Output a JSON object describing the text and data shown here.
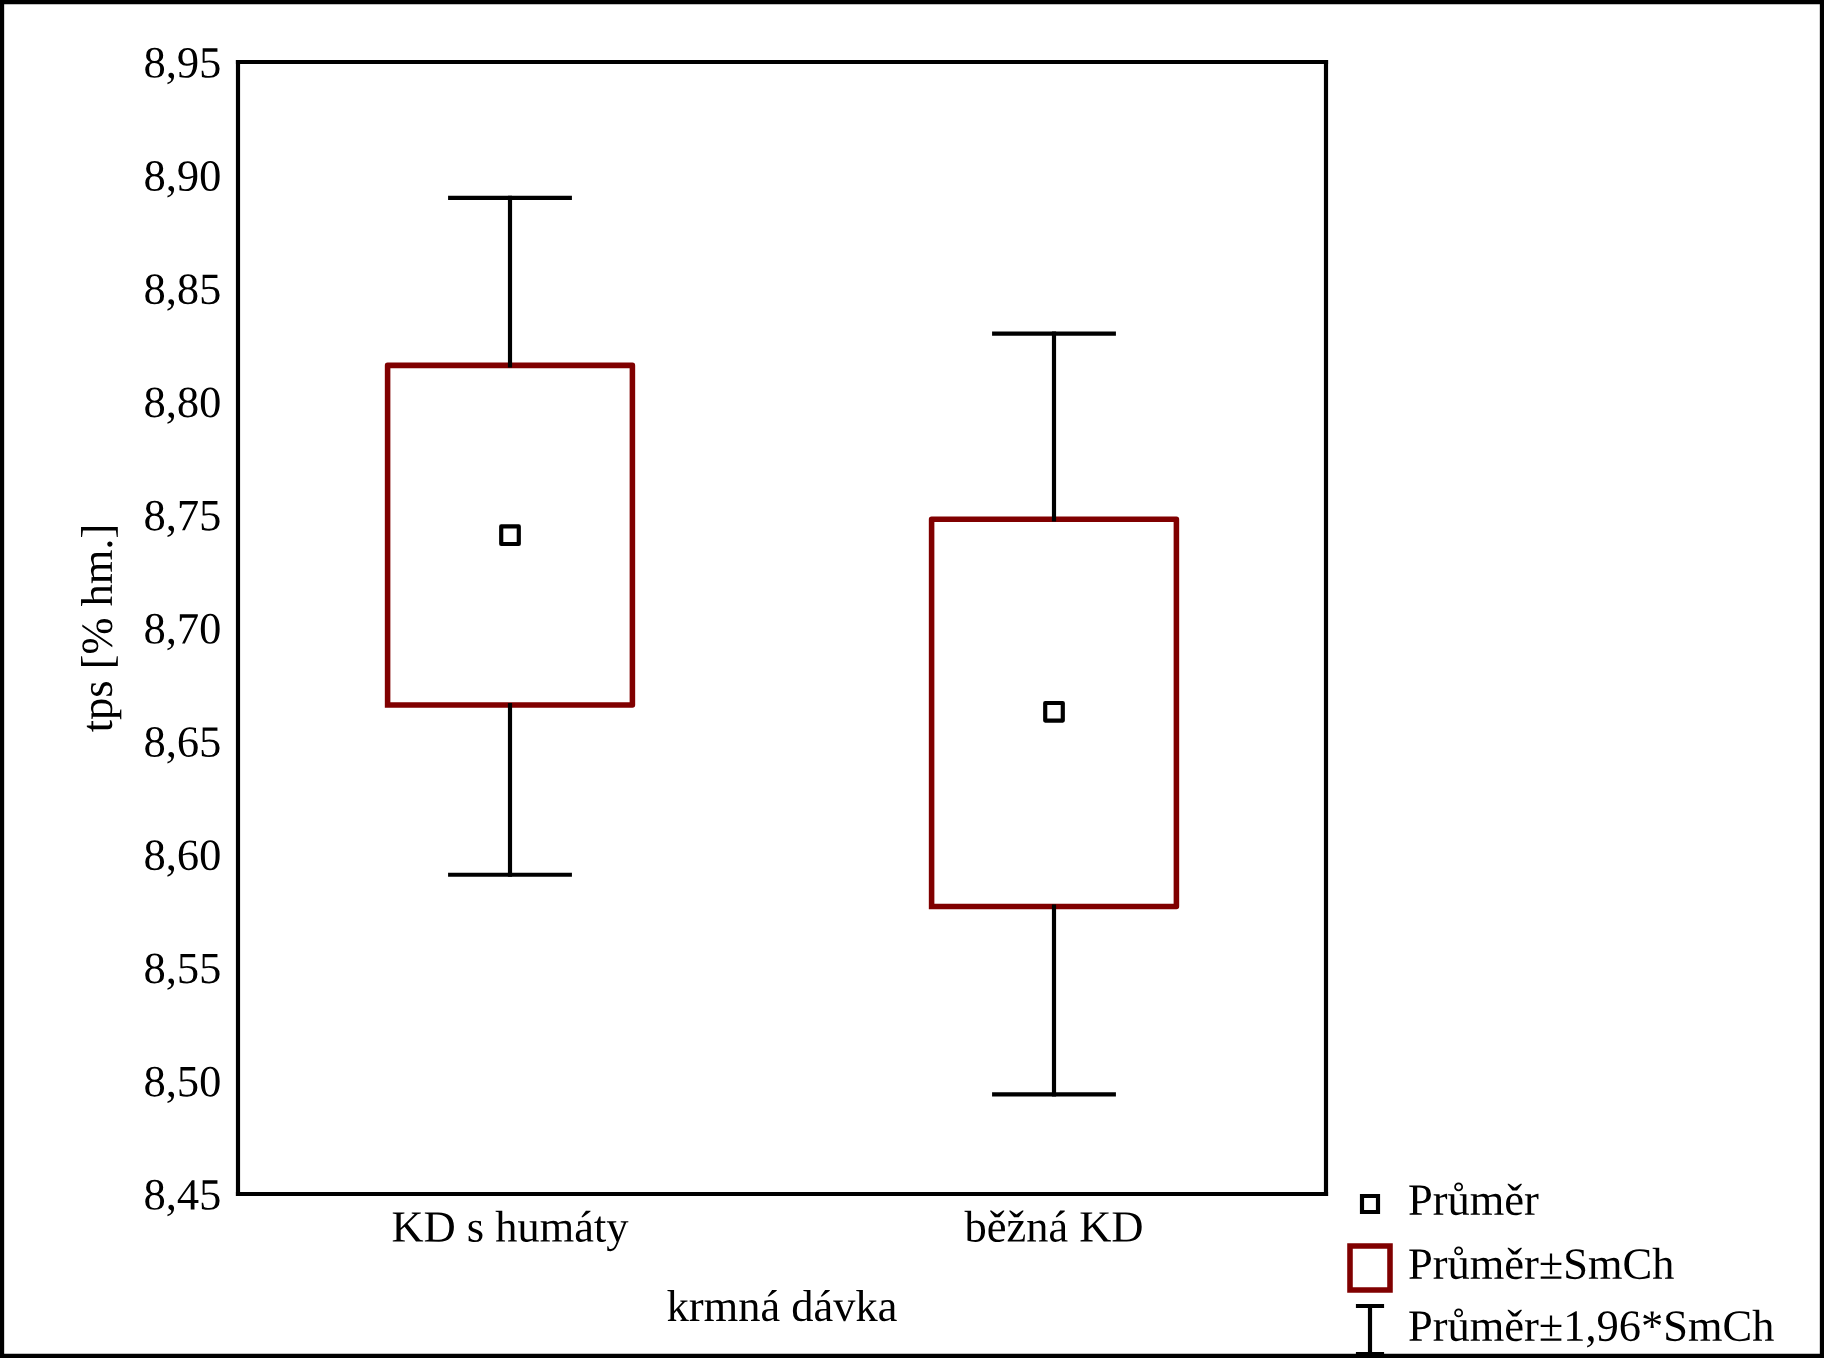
{
  "chart_data": {
    "type": "box",
    "xlabel": "krmná dávka",
    "ylabel": "tps [% hm.]",
    "categories": [
      "KD s humáty",
      "běžná KD"
    ],
    "series": [
      {
        "color": "#800000",
        "boxes": [
          {
            "low": 8.591,
            "q1": 8.666,
            "mean": 8.741,
            "q3": 8.816,
            "high": 8.89
          },
          {
            "low": 8.494,
            "q1": 8.577,
            "mean": 8.663,
            "q3": 8.748,
            "high": 8.83
          }
        ]
      }
    ],
    "ylim": [
      8.45,
      8.95
    ],
    "yticks": [
      {
        "value": 8.45,
        "label": "8,45"
      },
      {
        "value": 8.5,
        "label": "8,50"
      },
      {
        "value": 8.55,
        "label": "8,55"
      },
      {
        "value": 8.6,
        "label": "8,60"
      },
      {
        "value": 8.65,
        "label": "8,65"
      },
      {
        "value": 8.7,
        "label": "8,70"
      },
      {
        "value": 8.75,
        "label": "8,75"
      },
      {
        "value": 8.8,
        "label": "8,80"
      },
      {
        "value": 8.85,
        "label": "8,85"
      },
      {
        "value": 8.9,
        "label": "8,90"
      },
      {
        "value": 8.95,
        "label": "8,95"
      }
    ],
    "grid": false,
    "marker": "square",
    "annotations": [
      "Průměr",
      "Průměr±SmCh",
      "Průměr±1,96*SmCh"
    ]
  }
}
